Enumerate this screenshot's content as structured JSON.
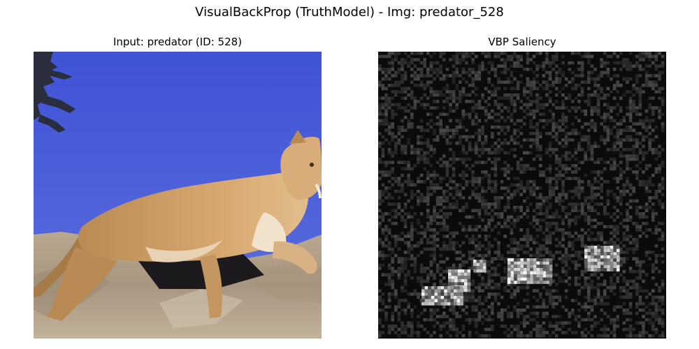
{
  "figure": {
    "title": "VisualBackProp (TruthModel) - Img: predator_528"
  },
  "panels": [
    {
      "title": "Input: predator (ID: 528)",
      "content": "photo of a cougar (mountain lion) climbing a rocky slope against a blue sky, tree branches at top-left"
    },
    {
      "title": "VBP Saliency",
      "content": "grayscale saliency map, mostly dark noise with bright patches along the lower-middle area"
    }
  ]
}
